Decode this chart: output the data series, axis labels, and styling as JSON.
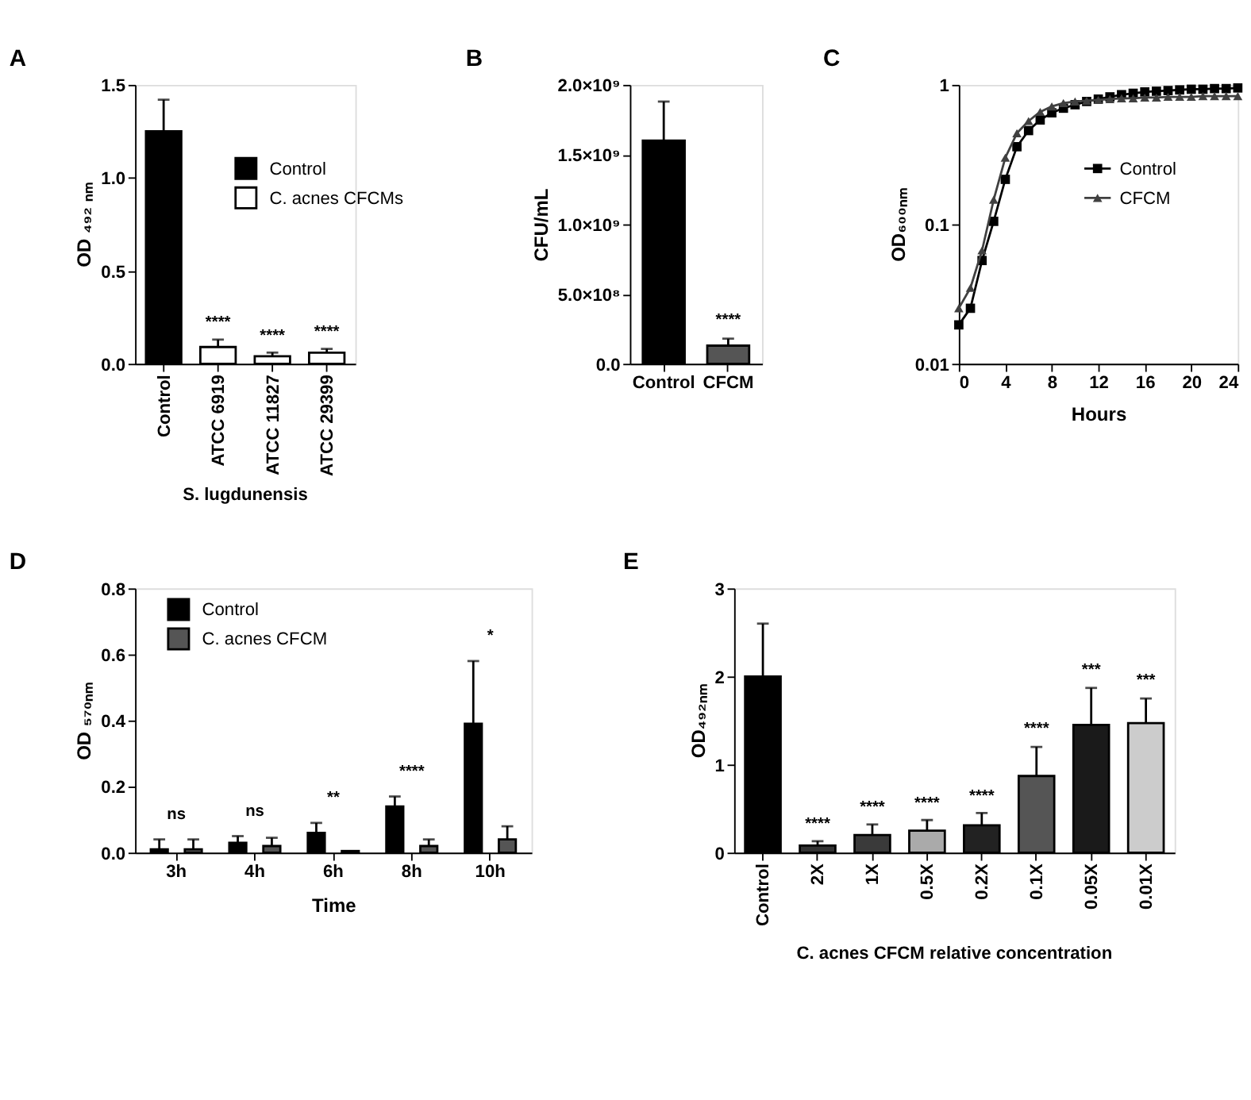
{
  "chart_data": [
    {
      "type": "bar",
      "title": "A",
      "ylabel": "OD ₄₉₂ ₙₘ",
      "categories": [
        "Control",
        "ATCC 6919",
        "ATCC 11827",
        "ATCC 29399"
      ],
      "series": [
        {
          "name": "Control",
          "color": "#000000",
          "values": [
            1.25,
            null,
            null,
            null
          ],
          "errors": [
            0.17,
            null,
            null,
            null
          ]
        },
        {
          "name": "C. acnes CFCMs",
          "color": "#ffffff",
          "values": [
            null,
            0.09,
            0.04,
            0.06
          ],
          "errors": [
            null,
            0.04,
            0.02,
            0.02
          ]
        }
      ],
      "ylim": [
        0,
        1.5
      ],
      "yticks": [
        {
          "value": 0,
          "label": "0.0"
        },
        {
          "value": 0.5,
          "label": "0.5"
        },
        {
          "value": 1,
          "label": "1.0"
        },
        {
          "value": 1.5,
          "label": "1.5"
        }
      ],
      "legend": "right",
      "annotations": [
        {
          "text": "****",
          "x": "ATCC 6919",
          "y": 0.15
        },
        {
          "text": "****",
          "x": "ATCC 11827",
          "y": 0.08
        },
        {
          "text": "****",
          "x": "ATCC 29399",
          "y": 0.1
        },
        "S. lugdunensis"
      ]
    },
    {
      "type": "bar",
      "title": "B",
      "ylabel": "CFU/mL",
      "categories": [
        "Control",
        "CFCM"
      ],
      "values": [
        1600000000,
        130000000
      ],
      "colors": [
        "#000000",
        "#555555"
      ],
      "errors": [
        280000000,
        50000000
      ],
      "ylim": [
        0,
        2000000000
      ],
      "yticks": [
        {
          "value": 0,
          "label": "0.0"
        },
        {
          "value": 500000000,
          "label": "5.0×10⁸"
        },
        {
          "value": 1000000000,
          "label": "1.0×10⁹"
        },
        {
          "value": 1500000000,
          "label": "1.5×10⁹"
        },
        {
          "value": 2000000000,
          "label": "2.0×10⁹"
        }
      ],
      "annotations": [
        {
          "text": "****",
          "x": "CFCM",
          "y": 220000000
        }
      ]
    },
    {
      "type": "line",
      "title": "C",
      "xlabel": "Hours",
      "ylabel": "OD₆₀₀ₙₘ",
      "log": true,
      "legend": "right",
      "x": [
        0,
        1,
        2,
        3,
        4,
        5,
        6,
        7,
        8,
        9,
        10,
        11,
        12,
        13,
        14,
        15,
        16,
        17,
        18,
        19,
        20,
        21,
        22,
        23,
        24
      ],
      "series": [
        {
          "name": "Control",
          "color": "#000000",
          "marker": "square",
          "values": [
            0.019,
            0.025,
            0.055,
            0.105,
            0.21,
            0.36,
            0.47,
            0.56,
            0.63,
            0.68,
            0.72,
            0.76,
            0.79,
            0.82,
            0.85,
            0.87,
            0.89,
            0.9,
            0.91,
            0.92,
            0.93,
            0.93,
            0.94,
            0.94,
            0.95
          ]
        },
        {
          "name": "CFCM",
          "color": "#404040",
          "marker": "triangle",
          "values": [
            0.025,
            0.035,
            0.065,
            0.15,
            0.3,
            0.45,
            0.55,
            0.64,
            0.7,
            0.74,
            0.76,
            0.77,
            0.78,
            0.79,
            0.8,
            0.8,
            0.81,
            0.81,
            0.82,
            0.82,
            0.82,
            0.83,
            0.83,
            0.83,
            0.83
          ]
        }
      ],
      "xlim": [
        0,
        24
      ],
      "xticks": [
        0,
        4,
        8,
        12,
        16,
        20,
        24
      ],
      "ylim": [
        0.01,
        1
      ],
      "yticks": [
        0.01,
        0.1,
        1
      ]
    },
    {
      "type": "bar",
      "title": "D",
      "xlabel": "Time",
      "ylabel": "OD ₅₇₀ₙₘ",
      "categories": [
        "3h",
        "4h",
        "6h",
        "8h",
        "10h"
      ],
      "series": [
        {
          "name": "Control",
          "color": "#000000",
          "values": [
            0.01,
            0.03,
            0.06,
            0.14,
            0.39
          ],
          "errors": [
            0.03,
            0.02,
            0.03,
            0.03,
            0.19
          ]
        },
        {
          "name": "C. acnes CFCM",
          "color": "#555555",
          "values": [
            0.01,
            0.02,
            0.005,
            0.02,
            0.04
          ],
          "errors": [
            0.03,
            0.025,
            null,
            0.02,
            0.04
          ]
        }
      ],
      "ylim": [
        0,
        0.8
      ],
      "yticks": [
        {
          "value": 0,
          "label": "0.0"
        },
        {
          "value": 0.2,
          "label": "0.2"
        },
        {
          "value": 0.4,
          "label": "0.4"
        },
        {
          "value": 0.6,
          "label": "0.6"
        },
        {
          "value": 0.8,
          "label": "0.8"
        }
      ],
      "legend": "top left",
      "annotations": [
        "ns",
        "ns",
        "**",
        "****",
        "*"
      ]
    },
    {
      "type": "bar",
      "title": "E",
      "ylabel": "OD₄₉₂ₙₘ",
      "categories": [
        "Control",
        "2X",
        "1X",
        "0.5X",
        "0.2X",
        "0.1X",
        "0.05X",
        "0.01X"
      ],
      "values": [
        2.0,
        0.08,
        0.2,
        0.25,
        0.31,
        0.87,
        1.45,
        1.47
      ],
      "errors": [
        0.6,
        0.05,
        0.12,
        0.12,
        0.14,
        0.33,
        0.42,
        0.28
      ],
      "colors": [
        "#000000",
        "#333333",
        "#3a3a3a",
        "#aaaaaa",
        "#222222",
        "#555555",
        "#1a1a1a",
        "#cccccc"
      ],
      "ylim": [
        0,
        3
      ],
      "yticks": [
        0,
        1,
        2,
        3
      ],
      "annotations": [
        {
          "text": "****",
          "x": "2X",
          "y": 0.17
        },
        {
          "text": "****",
          "x": "1X",
          "y": 0.36
        },
        {
          "text": "****",
          "x": "0.5X",
          "y": 0.41
        },
        {
          "text": "****",
          "x": "0.2X",
          "y": 0.49
        },
        {
          "text": "****",
          "x": "0.1X",
          "y": 1.25
        },
        {
          "text": "***",
          "x": "0.05X",
          "y": 1.92
        },
        {
          "text": "***",
          "x": "0.01X",
          "y": 1.8
        },
        "C. acnes CFCM relative concentration"
      ]
    }
  ]
}
